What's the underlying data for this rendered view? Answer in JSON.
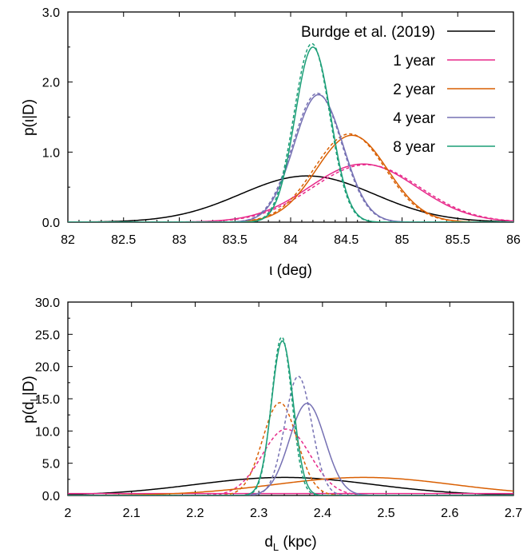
{
  "chart_data": [
    {
      "type": "line",
      "xlabel": "ι (deg)",
      "ylabel": "p(ι|D)",
      "xlim": [
        82,
        86
      ],
      "ylim": [
        0,
        3.0
      ],
      "xticks": [
        "82",
        "82.5",
        "83",
        "83.5",
        "84",
        "84.5",
        "85",
        "85.5",
        "86"
      ],
      "yticks": [
        "0.0",
        "1.0",
        "2.0",
        "3.0"
      ],
      "legend_position": "top-right",
      "legend": [
        "Burdge et al. (2019)",
        "1 year",
        "2 year",
        "4 year",
        "8 year"
      ],
      "series": [
        {
          "name": "Burdge et al. (2019)",
          "color": "#000000",
          "dash": false,
          "shape": "gaussian",
          "mean": 84.15,
          "peak": 0.66
        },
        {
          "name": "1 year",
          "color": "#e7298a",
          "dash": false,
          "shape": "gaussian",
          "mean": 84.65,
          "peak": 0.83
        },
        {
          "name": "1 year",
          "color": "#e7298a",
          "dash": true,
          "shape": "gaussian",
          "mean": 84.68,
          "peak": 0.82
        },
        {
          "name": "2 year",
          "color": "#d95f02",
          "dash": false,
          "shape": "gaussian",
          "mean": 84.55,
          "peak": 1.24
        },
        {
          "name": "2 year",
          "color": "#d95f02",
          "dash": true,
          "shape": "gaussian",
          "mean": 84.53,
          "peak": 1.26
        },
        {
          "name": "4 year",
          "color": "#7570b3",
          "dash": false,
          "shape": "gaussian",
          "mean": 84.25,
          "peak": 1.82
        },
        {
          "name": "4 year",
          "color": "#7570b3",
          "dash": true,
          "shape": "gaussian",
          "mean": 84.24,
          "peak": 1.84
        },
        {
          "name": "8 year",
          "color": "#1b9e77",
          "dash": false,
          "shape": "gaussian",
          "mean": 84.2,
          "peak": 2.5
        },
        {
          "name": "8 year",
          "color": "#1b9e77",
          "dash": true,
          "shape": "gaussian",
          "mean": 84.19,
          "peak": 2.55
        }
      ]
    },
    {
      "type": "line",
      "xlabel": "d",
      "xlabel_sub": "L",
      "xlabel_unit": " (kpc)",
      "ylabel": "p(d",
      "ylabel_sub": "L",
      "ylabel_end": "|D)",
      "xlim": [
        2.0,
        2.7
      ],
      "ylim": [
        0,
        30.0
      ],
      "xticks": [
        "2",
        "2.1",
        "2.2",
        "2.3",
        "2.4",
        "2.5",
        "2.6",
        "2.7"
      ],
      "yticks": [
        "0.0",
        "5.0",
        "10.0",
        "15.0",
        "20.0",
        "25.0",
        "30.0"
      ],
      "series": [
        {
          "name": "Burdge et al. (2019)",
          "color": "#000000",
          "dash": false,
          "shape": "gaussian",
          "mean": 2.34,
          "peak": 2.8
        },
        {
          "name": "1 year",
          "color": "#e7298a",
          "dash": false,
          "shape": "flat",
          "value": 0.3
        },
        {
          "name": "1 year",
          "color": "#e7298a",
          "dash": true,
          "shape": "gaussian",
          "mean": 2.343,
          "peak": 10.3
        },
        {
          "name": "2 year",
          "color": "#d95f02",
          "dash": false,
          "shape": "gaussian",
          "mean": 2.465,
          "peak": 2.8
        },
        {
          "name": "2 year",
          "color": "#d95f02",
          "dash": true,
          "shape": "gaussian",
          "mean": 2.333,
          "peak": 14.4
        },
        {
          "name": "4 year",
          "color": "#7570b3",
          "dash": false,
          "shape": "gaussian",
          "mean": 2.376,
          "peak": 14.3
        },
        {
          "name": "4 year",
          "color": "#7570b3",
          "dash": true,
          "shape": "gaussian",
          "mean": 2.362,
          "peak": 18.5
        },
        {
          "name": "8 year",
          "color": "#1b9e77",
          "dash": false,
          "shape": "gaussian",
          "mean": 2.337,
          "peak": 24.0
        },
        {
          "name": "8 year",
          "color": "#1b9e77",
          "dash": true,
          "shape": "gaussian",
          "mean": 2.336,
          "peak": 24.6
        }
      ]
    }
  ]
}
